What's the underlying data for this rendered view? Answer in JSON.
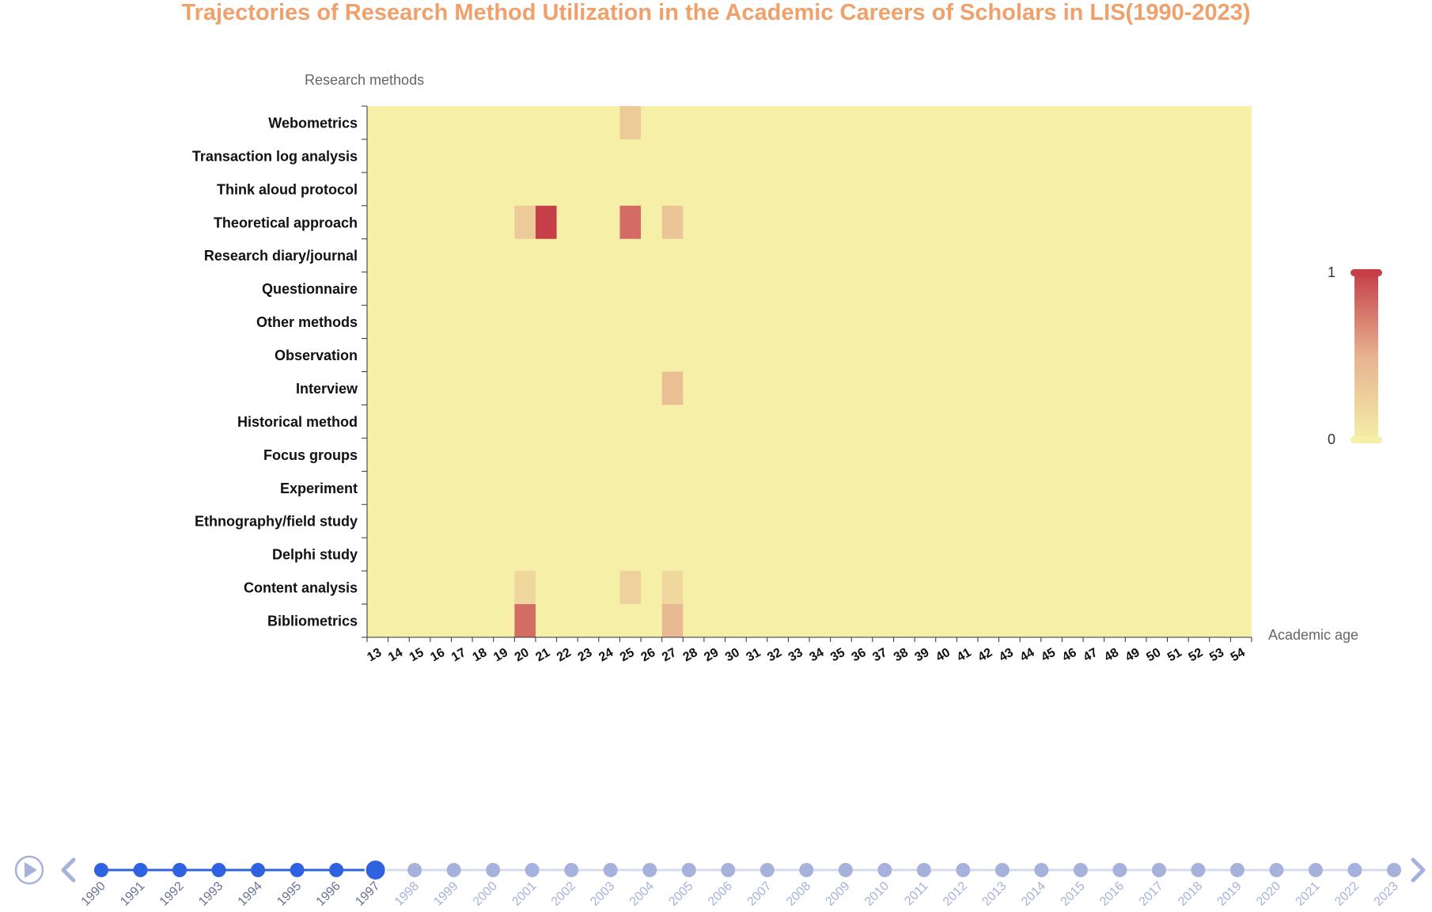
{
  "title": "Trajectories of Research Method Utilization in the Academic Careers of Scholars in LIS(1990-2023)",
  "colors": {
    "title": "#f0a06a",
    "low": "#f5efa8",
    "high": "#c63f48",
    "axis": "#333333",
    "timeline_active": "#2f62e0",
    "timeline_inactive": "#a6b2dc",
    "timeline_line": "#d6dcef",
    "timeline_label_active": "#6b7393",
    "timeline_label_inactive": "#a6b2dc",
    "control": "#a6b2dc"
  },
  "chart_data": {
    "type": "heatmap",
    "title": "Trajectories of Research Method Utilization in the Academic Careers of Scholars in LIS(1990-2023)",
    "ylabel": "Research methods",
    "xlabel": "Academic age",
    "x_categories": [
      "13",
      "14",
      "15",
      "16",
      "17",
      "18",
      "19",
      "20",
      "21",
      "22",
      "23",
      "24",
      "25",
      "26",
      "27",
      "28",
      "29",
      "30",
      "31",
      "32",
      "33",
      "34",
      "35",
      "36",
      "37",
      "38",
      "39",
      "40",
      "41",
      "42",
      "43",
      "44",
      "45",
      "46",
      "47",
      "48",
      "49",
      "50",
      "51",
      "52",
      "53",
      "54"
    ],
    "y_categories": [
      "Webometrics",
      "Transaction log analysis",
      "Think aloud protocol",
      "Theoretical approach",
      "Research diary/journal",
      "Questionnaire",
      "Other methods",
      "Observation",
      "Interview",
      "Historical method",
      "Focus groups",
      "Experiment",
      "Ethnography/field study",
      "Delphi study",
      "Content analysis",
      "Bibliometrics"
    ],
    "cells": [
      {
        "method": "Webometrics",
        "age": "25",
        "value": 0.3
      },
      {
        "method": "Theoretical approach",
        "age": "20",
        "value": 0.3
      },
      {
        "method": "Theoretical approach",
        "age": "21",
        "value": 1.0
      },
      {
        "method": "Theoretical approach",
        "age": "25",
        "value": 0.8
      },
      {
        "method": "Theoretical approach",
        "age": "27",
        "value": 0.35
      },
      {
        "method": "Interview",
        "age": "27",
        "value": 0.4
      },
      {
        "method": "Content analysis",
        "age": "20",
        "value": 0.2
      },
      {
        "method": "Content analysis",
        "age": "25",
        "value": 0.25
      },
      {
        "method": "Content analysis",
        "age": "27",
        "value": 0.2
      },
      {
        "method": "Bibliometrics",
        "age": "20",
        "value": 0.8
      },
      {
        "method": "Bibliometrics",
        "age": "27",
        "value": 0.45
      }
    ],
    "default_value": 0,
    "visual_map": {
      "min": 0,
      "max": 1,
      "min_label": "0",
      "max_label": "1"
    }
  },
  "timeline": {
    "years": [
      "1990",
      "1991",
      "1992",
      "1993",
      "1994",
      "1995",
      "1996",
      "1997",
      "1998",
      "1999",
      "2000",
      "2001",
      "2002",
      "2003",
      "2004",
      "2005",
      "2006",
      "2007",
      "2008",
      "2009",
      "2010",
      "2011",
      "2012",
      "2013",
      "2014",
      "2015",
      "2016",
      "2017",
      "2018",
      "2019",
      "2020",
      "2021",
      "2022",
      "2023"
    ],
    "current": "1997",
    "play_icon": "play-icon",
    "prev_icon": "chevron-left-icon",
    "next_icon": "chevron-right-icon"
  }
}
